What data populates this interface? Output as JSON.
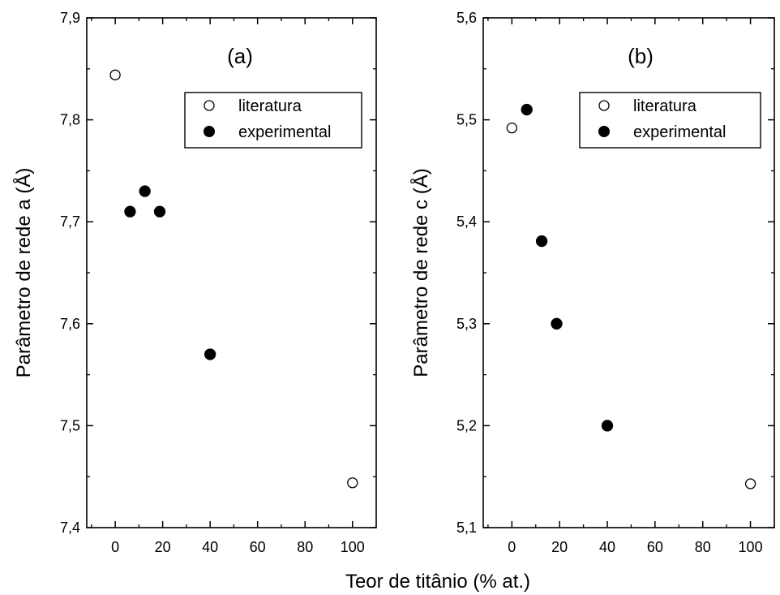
{
  "figure": {
    "shared_xlabel": "Teor de titânio (% at.)"
  },
  "chart_data": [
    {
      "type": "scatter",
      "panel_label": "(a)",
      "xlabel": "",
      "ylabel": "Parâmetro de rede a (Å)",
      "xlim": [
        -12,
        110
      ],
      "ylim": [
        7.4,
        7.9
      ],
      "xticks": [
        0,
        20,
        40,
        60,
        80,
        100
      ],
      "xtick_labels": [
        "0",
        "20",
        "40",
        "60",
        "80",
        "100"
      ],
      "yticks": [
        7.4,
        7.5,
        7.6,
        7.7,
        7.8,
        7.9
      ],
      "ytick_labels": [
        "7,4",
        "7,5",
        "7,6",
        "7,7",
        "7,8",
        "7,9"
      ],
      "grid": false,
      "legend_position": "top-right",
      "series": [
        {
          "name": "literatura",
          "marker": "open-circle",
          "points": [
            [
              0,
              7.844
            ],
            [
              100,
              7.444
            ]
          ]
        },
        {
          "name": "experimental",
          "marker": "filled-circle",
          "points": [
            [
              6.25,
              7.71
            ],
            [
              12.5,
              7.73
            ],
            [
              18.75,
              7.71
            ],
            [
              40,
              7.57
            ]
          ]
        }
      ]
    },
    {
      "type": "scatter",
      "panel_label": "(b)",
      "xlabel": "",
      "ylabel": "Parâmetro de rede c (Å)",
      "xlim": [
        -12,
        110
      ],
      "ylim": [
        5.1,
        5.6
      ],
      "xticks": [
        0,
        20,
        40,
        60,
        80,
        100
      ],
      "xtick_labels": [
        "0",
        "20",
        "40",
        "60",
        "80",
        "100"
      ],
      "yticks": [
        5.1,
        5.2,
        5.3,
        5.4,
        5.5,
        5.6
      ],
      "ytick_labels": [
        "5,1",
        "5,2",
        "5,3",
        "5,4",
        "5,5",
        "5,6"
      ],
      "grid": false,
      "legend_position": "top-right",
      "series": [
        {
          "name": "literatura",
          "marker": "open-circle",
          "points": [
            [
              0,
              5.492
            ],
            [
              100,
              5.143
            ]
          ]
        },
        {
          "name": "experimental",
          "marker": "filled-circle",
          "points": [
            [
              6.25,
              5.51
            ],
            [
              12.5,
              5.381
            ],
            [
              18.75,
              5.3
            ],
            [
              40,
              5.2
            ]
          ]
        }
      ]
    }
  ]
}
